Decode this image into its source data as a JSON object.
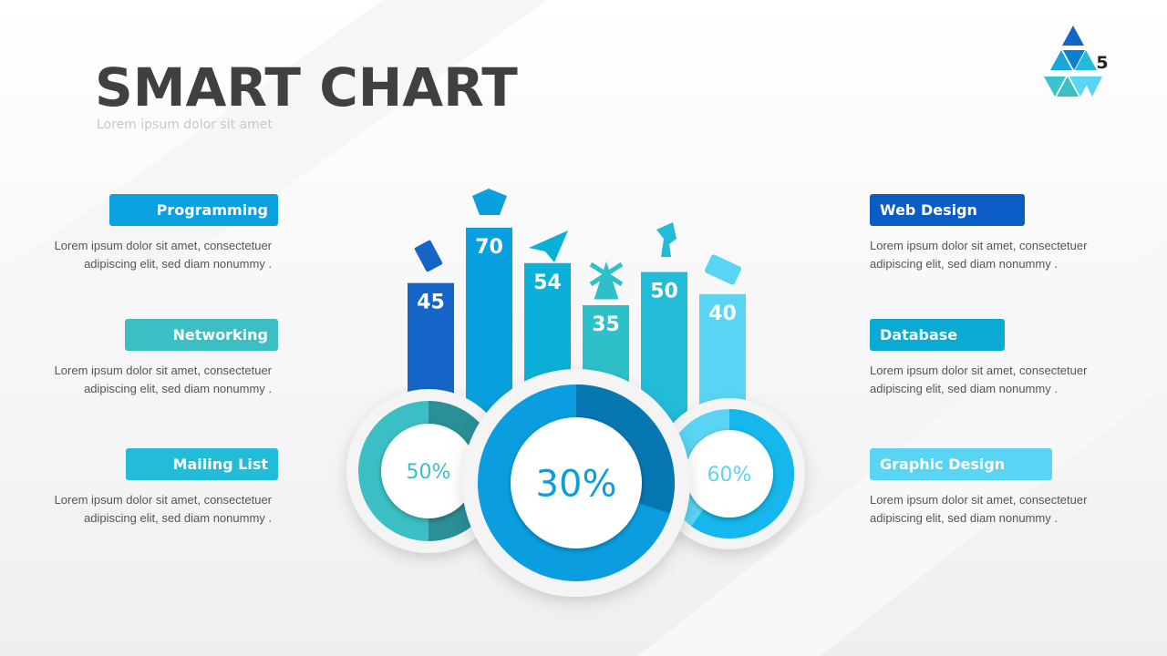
{
  "title": "SMART CHART",
  "subtitle": "Lorem ipsum dolor sit amet",
  "page_number": "5",
  "left_items": [
    {
      "label": "Programming",
      "text": "Lorem ipsum dolor sit amet, consectetuer adipiscing elit, sed diam nonummy  .",
      "color": "#0ba0e0"
    },
    {
      "label": "Networking",
      "text": "Lorem ipsum dolor sit amet, consectetuer adipiscing elit, sed diam nonummy  .",
      "color": "#3bbfc4"
    },
    {
      "label": "Mailing List",
      "text": "Lorem ipsum dolor sit amet, consectetuer adipiscing elit, sed diam nonummy  .",
      "color": "#22bcd8"
    }
  ],
  "right_items": [
    {
      "label": "Web Design",
      "text": "Lorem ipsum dolor sit amet, consectetuer adipiscing elit, sed diam nonummy  .",
      "color": "#0b5cc4"
    },
    {
      "label": "Database",
      "text": "Lorem ipsum dolor sit amet, consectetuer adipiscing elit, sed diam nonummy  .",
      "color": "#0aaad4"
    },
    {
      "label": "Graphic Design",
      "text": "Lorem ipsum dolor sit amet, consectetuer adipiscing elit, sed diam nonummy  .",
      "color": "#5ad4f4"
    }
  ],
  "bars": {
    "values": [
      45,
      70,
      54,
      35,
      50,
      40
    ],
    "colors": [
      "#1565c8",
      "#0aa0e0",
      "#0ab0d8",
      "#2ec0c8",
      "#22bcd8",
      "#5ad4f4"
    ]
  },
  "donuts": [
    {
      "value": 50,
      "label": "50%",
      "color": "#3bbfc4",
      "dark": "#2a8f96"
    },
    {
      "value": 30,
      "label": "30%",
      "color": "#0a9ee0",
      "dark": "#0677b0"
    },
    {
      "value": 60,
      "label": "60%",
      "color": "#5ad4f4",
      "dark": "#15b7ec"
    }
  ]
}
